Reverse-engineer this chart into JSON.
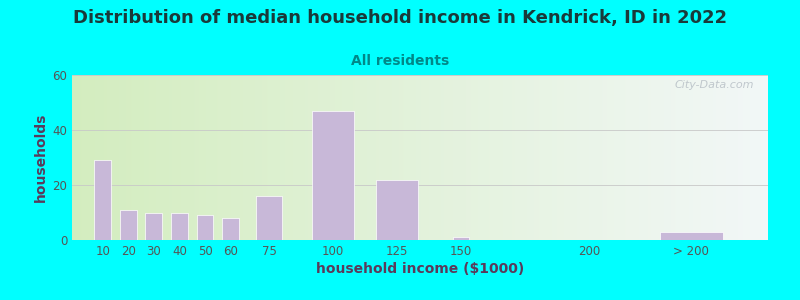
{
  "title": "Distribution of median household income in Kendrick, ID in 2022",
  "subtitle": "All residents",
  "xlabel": "household income ($1000)",
  "ylabel": "households",
  "bg_outer": "#00FFFF",
  "bar_color": "#c8b8d8",
  "bar_edge_color": "#ffffff",
  "categories": [
    "10",
    "20",
    "30",
    "40",
    "50",
    "60",
    "75",
    "100",
    "125",
    "150",
    "200",
    "> 200"
  ],
  "x_positions": [
    10,
    20,
    30,
    40,
    50,
    60,
    75,
    100,
    125,
    150,
    200,
    240
  ],
  "bar_widths": [
    8,
    8,
    8,
    8,
    8,
    8,
    12,
    20,
    20,
    8,
    8,
    30
  ],
  "values": [
    29,
    11,
    10,
    10,
    9,
    8,
    16,
    47,
    22,
    1,
    0,
    3
  ],
  "ylim": [
    0,
    60
  ],
  "yticks": [
    0,
    20,
    40,
    60
  ],
  "xlim": [
    -2,
    270
  ],
  "title_fontsize": 13,
  "subtitle_fontsize": 10,
  "axis_label_fontsize": 10,
  "tick_fontsize": 8.5,
  "title_color": "#1a3a3a",
  "subtitle_color": "#008888",
  "axis_label_color": "#5a3a5a",
  "tick_color": "#555555",
  "watermark": "City-Data.com",
  "xtick_labels": [
    "10",
    "20",
    "30",
    "40",
    "50",
    "60",
    "75",
    "100",
    "125",
    "150",
    "200",
    "> 200"
  ],
  "xtick_positions": [
    10,
    20,
    30,
    40,
    50,
    60,
    75,
    100,
    125,
    150,
    200,
    240
  ]
}
